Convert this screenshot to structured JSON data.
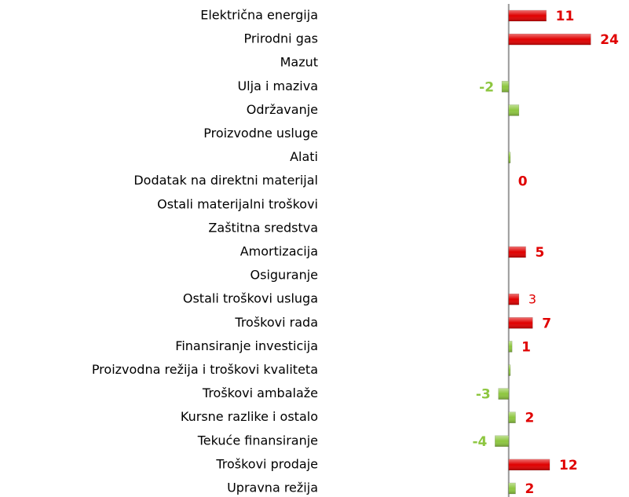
{
  "chart_data": {
    "type": "hbar",
    "categories": [
      "Električna energija",
      "Prirodni gas ",
      "Mazut",
      "Ulja i maziva",
      "Održavanje",
      "Proizvodne usluge",
      "Alati",
      "Dodatak na direktni materijal",
      "Ostali materijalni troškovi",
      "Zaštitna sredstva",
      "Amortizacija",
      "Osiguranje",
      "Ostali troškovi usluga",
      "Troškovi rada",
      "Finansiranje investicija",
      "Proizvodna režija i troškovi kvaliteta",
      "Troškovi ambalaže",
      "Kursne razlike i ostalo",
      "Tekuće finansiranje",
      "Troškovi prodaje",
      "Upravna režija"
    ],
    "values": [
      11,
      24,
      null,
      -2,
      3,
      null,
      0.5,
      0,
      null,
      null,
      5,
      null,
      3,
      7,
      1,
      0.5,
      -3,
      2,
      -4,
      12,
      2
    ],
    "value_labels": [
      "11",
      "24",
      null,
      "-2",
      null,
      null,
      null,
      "0",
      null,
      null,
      "5",
      null,
      "3",
      "7",
      "1",
      null,
      "-3",
      "2",
      "-4",
      "12",
      "2"
    ],
    "colors": [
      "#e00000",
      "#e00000",
      null,
      "#8dc63f",
      "#8dc63f",
      null,
      "#8dc63f",
      null,
      null,
      null,
      "#e00000",
      null,
      "#e00000",
      "#e00000",
      "#8dc63f",
      "#8dc63f",
      "#8dc63f",
      "#8dc63f",
      "#8dc63f",
      "#e00000",
      "#8dc63f"
    ],
    "xlim": [
      -5,
      26
    ]
  }
}
